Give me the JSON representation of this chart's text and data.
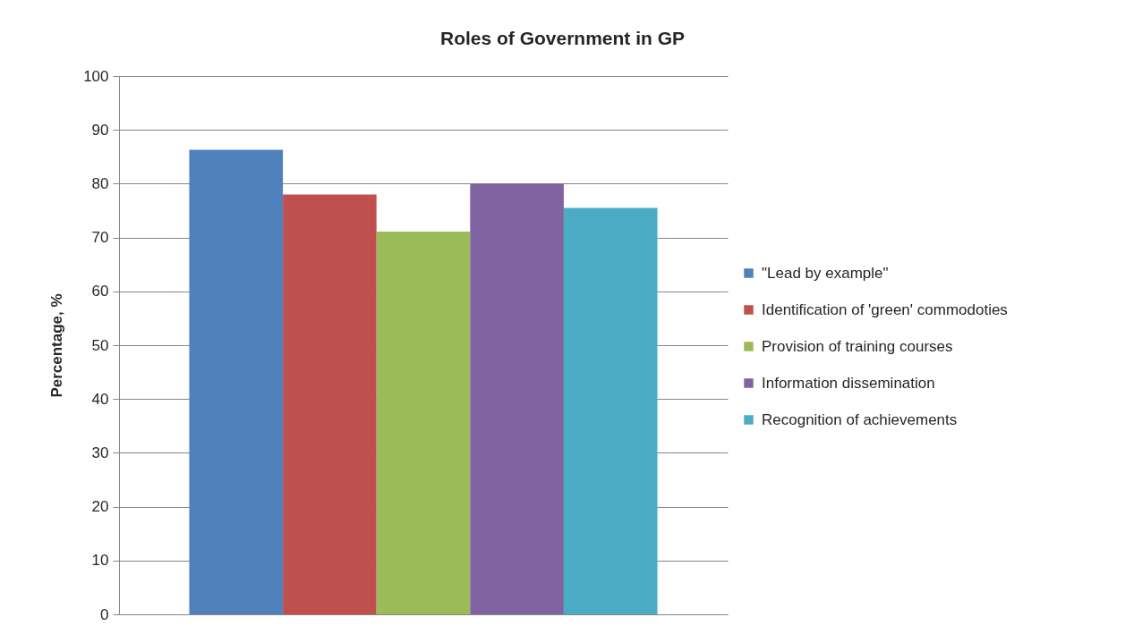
{
  "chart_data": {
    "type": "bar",
    "title": "Roles of Government in GP",
    "ylabel": "Percentage, %",
    "categories": [
      null
    ],
    "series": [
      {
        "name": "\"Lead by example\"",
        "color": "#4f81bd",
        "values": [
          86.3
        ]
      },
      {
        "name": "Identification of 'green' commodoties",
        "color": "#c0504d",
        "values": [
          78.0
        ]
      },
      {
        "name": "Provision of training courses",
        "color": "#9bbb59",
        "values": [
          71.1
        ]
      },
      {
        "name": "Information dissemination",
        "color": "#8064a2",
        "values": [
          80.0
        ]
      },
      {
        "name": "Recognition of achievements",
        "color": "#4bacc6",
        "values": [
          75.5
        ]
      }
    ],
    "ylim": [
      0,
      100
    ],
    "yticks": [
      0,
      10,
      20,
      30,
      40,
      50,
      60,
      70,
      80,
      90,
      100
    ],
    "grid": "y",
    "legend": "right",
    "tick_labels": "y"
  }
}
